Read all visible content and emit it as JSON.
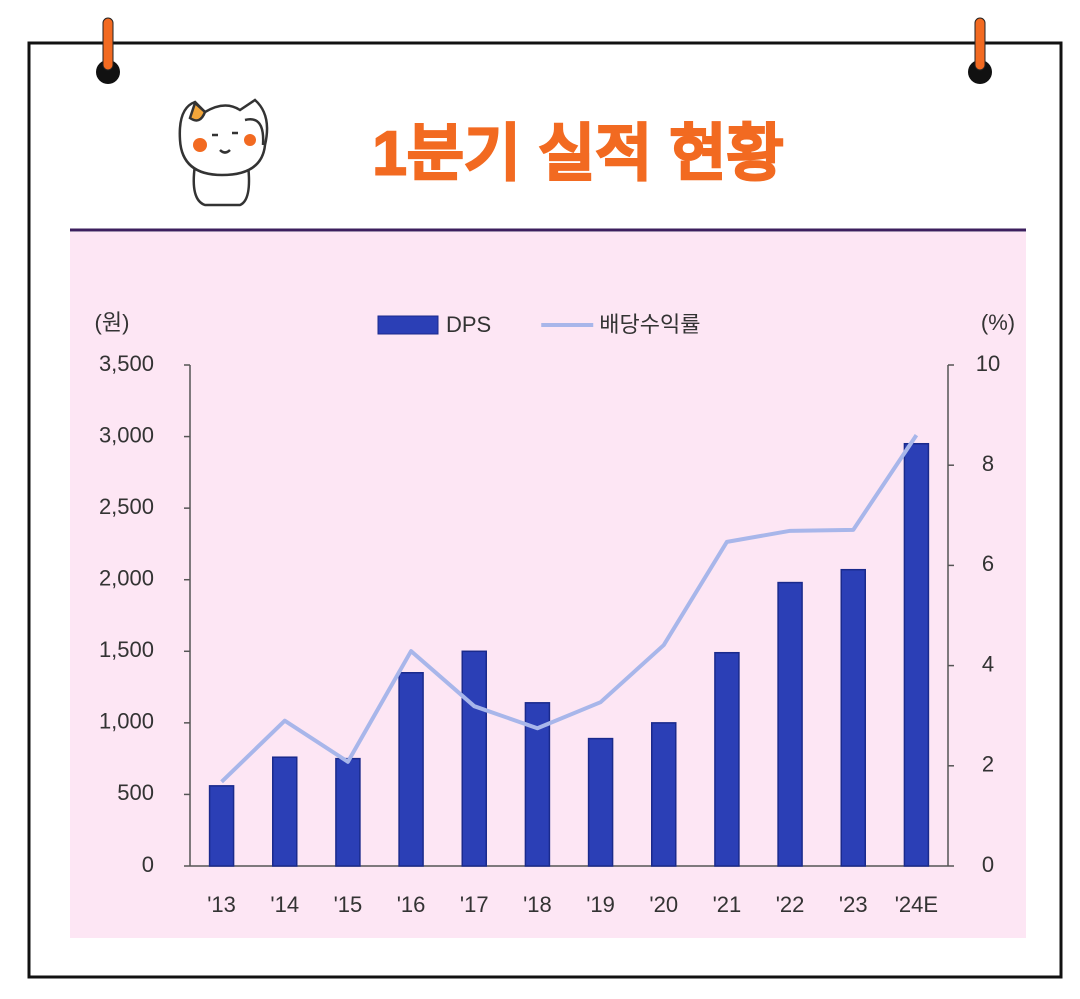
{
  "chart_data": {
    "type": "bar_line",
    "title": "1분기 실적 현황",
    "y_label": "(원)",
    "y2_label": "(%)",
    "categories": [
      "'13",
      "'14",
      "'15",
      "'16",
      "'17",
      "'18",
      "'19",
      "'20",
      "'21",
      "'22",
      "'23",
      "'24E"
    ],
    "series": [
      {
        "name": "DPS",
        "type": "bar",
        "color": "#2b3fb6",
        "values": [
          560,
          760,
          750,
          1350,
          1500,
          1140,
          890,
          1000,
          1490,
          1980,
          2070,
          2950
        ]
      },
      {
        "name": "배당수익률",
        "type": "line",
        "axis": "y2",
        "color": "#a8b6ea",
        "values": [
          1.68,
          2.9,
          2.08,
          4.29,
          3.19,
          2.75,
          3.27,
          4.41,
          6.47,
          6.69,
          6.71,
          8.6
        ]
      }
    ],
    "ylim": [
      0,
      3500
    ],
    "yticks": [
      0,
      500,
      {
        "value": 1000,
        "label": "1,000"
      },
      {
        "value": 1500,
        "label": "1,500"
      },
      {
        "value": 2000,
        "label": "2,000"
      },
      {
        "value": 2500,
        "label": "2,500"
      },
      {
        "value": 3000,
        "label": "3,000"
      },
      {
        "value": 3500,
        "label": "3,500"
      }
    ],
    "y2lim": [
      0,
      10
    ],
    "y2ticks": [
      0,
      2,
      4,
      6,
      8,
      10
    ],
    "legend": "top"
  }
}
